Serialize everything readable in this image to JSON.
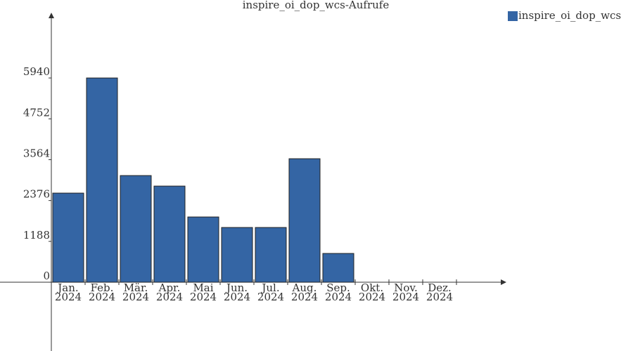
{
  "chart_data": {
    "type": "bar",
    "title": "inspire_oi_dop_wcs-Aufrufe",
    "categories": [
      "Jan. 2024",
      "Feb. 2024",
      "Mär. 2024",
      "Apr. 2024",
      "Mai 2024",
      "Jun. 2024",
      "Jul. 2024",
      "Aug. 2024",
      "Sep. 2024",
      "Okt. 2024",
      "Nov. 2024",
      "Dez. 2024"
    ],
    "series": [
      {
        "name": "inspire_oi_dop_wcs",
        "color": "#3465a4",
        "values": [
          2592,
          5940,
          3102,
          2796,
          1898,
          1592,
          1592,
          3592,
          837,
          null,
          null,
          null
        ]
      }
    ],
    "ylim": [
      -2000,
      7840
    ],
    "yticks": [
      0,
      1188,
      2376,
      3564,
      4752,
      5940
    ],
    "legend": "top-right"
  }
}
